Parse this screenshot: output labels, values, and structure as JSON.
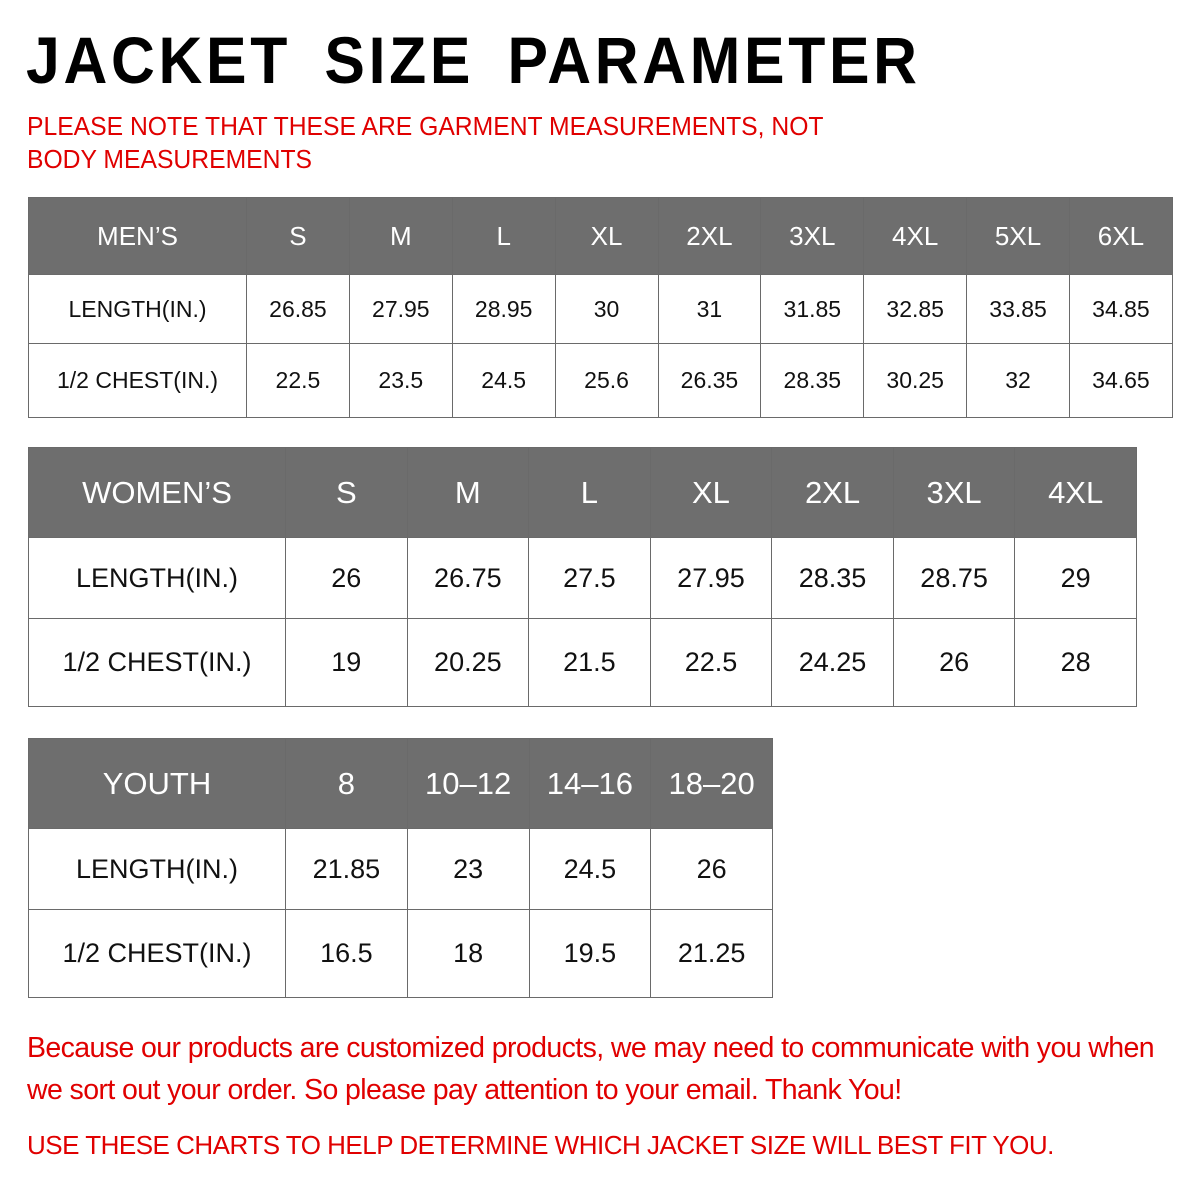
{
  "title": "JACKET SIZE PARAMETER",
  "note": "PLEASE NOTE THAT THESE ARE GARMENT MEASUREMENTS, NOT BODY MEASUREMENTS",
  "colors": {
    "header_bg": "#6e6e6e",
    "accent_red": "#e00000"
  },
  "men": {
    "header": "MEN’S",
    "sizes": [
      "S",
      "M",
      "L",
      "XL",
      "2XL",
      "3XL",
      "4XL",
      "5XL",
      "6XL"
    ],
    "rows": [
      {
        "label": "LENGTH(IN.)",
        "values": [
          "26.85",
          "27.95",
          "28.95",
          "30",
          "31",
          "31.85",
          "32.85",
          "33.85",
          "34.85"
        ]
      },
      {
        "label": "1/2 CHEST(IN.)",
        "values": [
          "22.5",
          "23.5",
          "24.5",
          "25.6",
          "26.35",
          "28.35",
          "30.25",
          "32",
          "34.65"
        ]
      }
    ]
  },
  "women": {
    "header": "WOMEN’S",
    "sizes": [
      "S",
      "M",
      "L",
      "XL",
      "2XL",
      "3XL",
      "4XL"
    ],
    "rows": [
      {
        "label": "LENGTH(IN.)",
        "values": [
          "26",
          "26.75",
          "27.5",
          "27.95",
          "28.35",
          "28.75",
          "29"
        ]
      },
      {
        "label": "1/2 CHEST(IN.)",
        "values": [
          "19",
          "20.25",
          "21.5",
          "22.5",
          "24.25",
          "26",
          "28"
        ]
      }
    ]
  },
  "youth": {
    "header": "YOUTH",
    "sizes": [
      "8",
      "10–12",
      "14–16",
      "18–20"
    ],
    "rows": [
      {
        "label": "LENGTH(IN.)",
        "values": [
          "21.85",
          "23",
          "24.5",
          "26"
        ]
      },
      {
        "label": "1/2 CHEST(IN.)",
        "values": [
          "16.5",
          "18",
          "19.5",
          "21.25"
        ]
      }
    ]
  },
  "paragraph": "Because our products are customized products, we may need to communicate with you when we sort out your order. So please pay attention to your email. Thank You!",
  "footer": "USE THESE CHARTS TO HELP DETERMINE WHICH JACKET SIZE WILL BEST FIT YOU."
}
